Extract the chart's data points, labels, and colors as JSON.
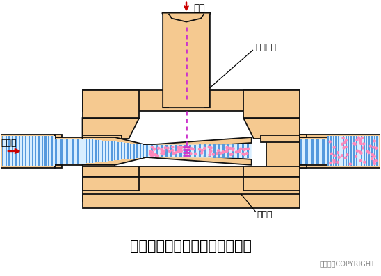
{
  "title": "射流式水力冲击式空气扩散装置",
  "copyright": "东方仿真COPYRIGHT",
  "label_kongqi": "空气",
  "label_kongjishuguan": "空气竖管",
  "label_hunheyue": "混合液",
  "label_kuosanqi": "扩散器",
  "fill_color": "#F5C990",
  "outline_color": "#111111",
  "blue_stripe_color": "#5599DD",
  "blue_fill": "#D8EEFF",
  "pink_dot_color": "#FF88BB",
  "magenta_dash_color": "#CC33CC",
  "red_color": "#CC0000",
  "bg_color": "#FFFFFF",
  "title_fontsize": 15,
  "label_fontsize": 9
}
